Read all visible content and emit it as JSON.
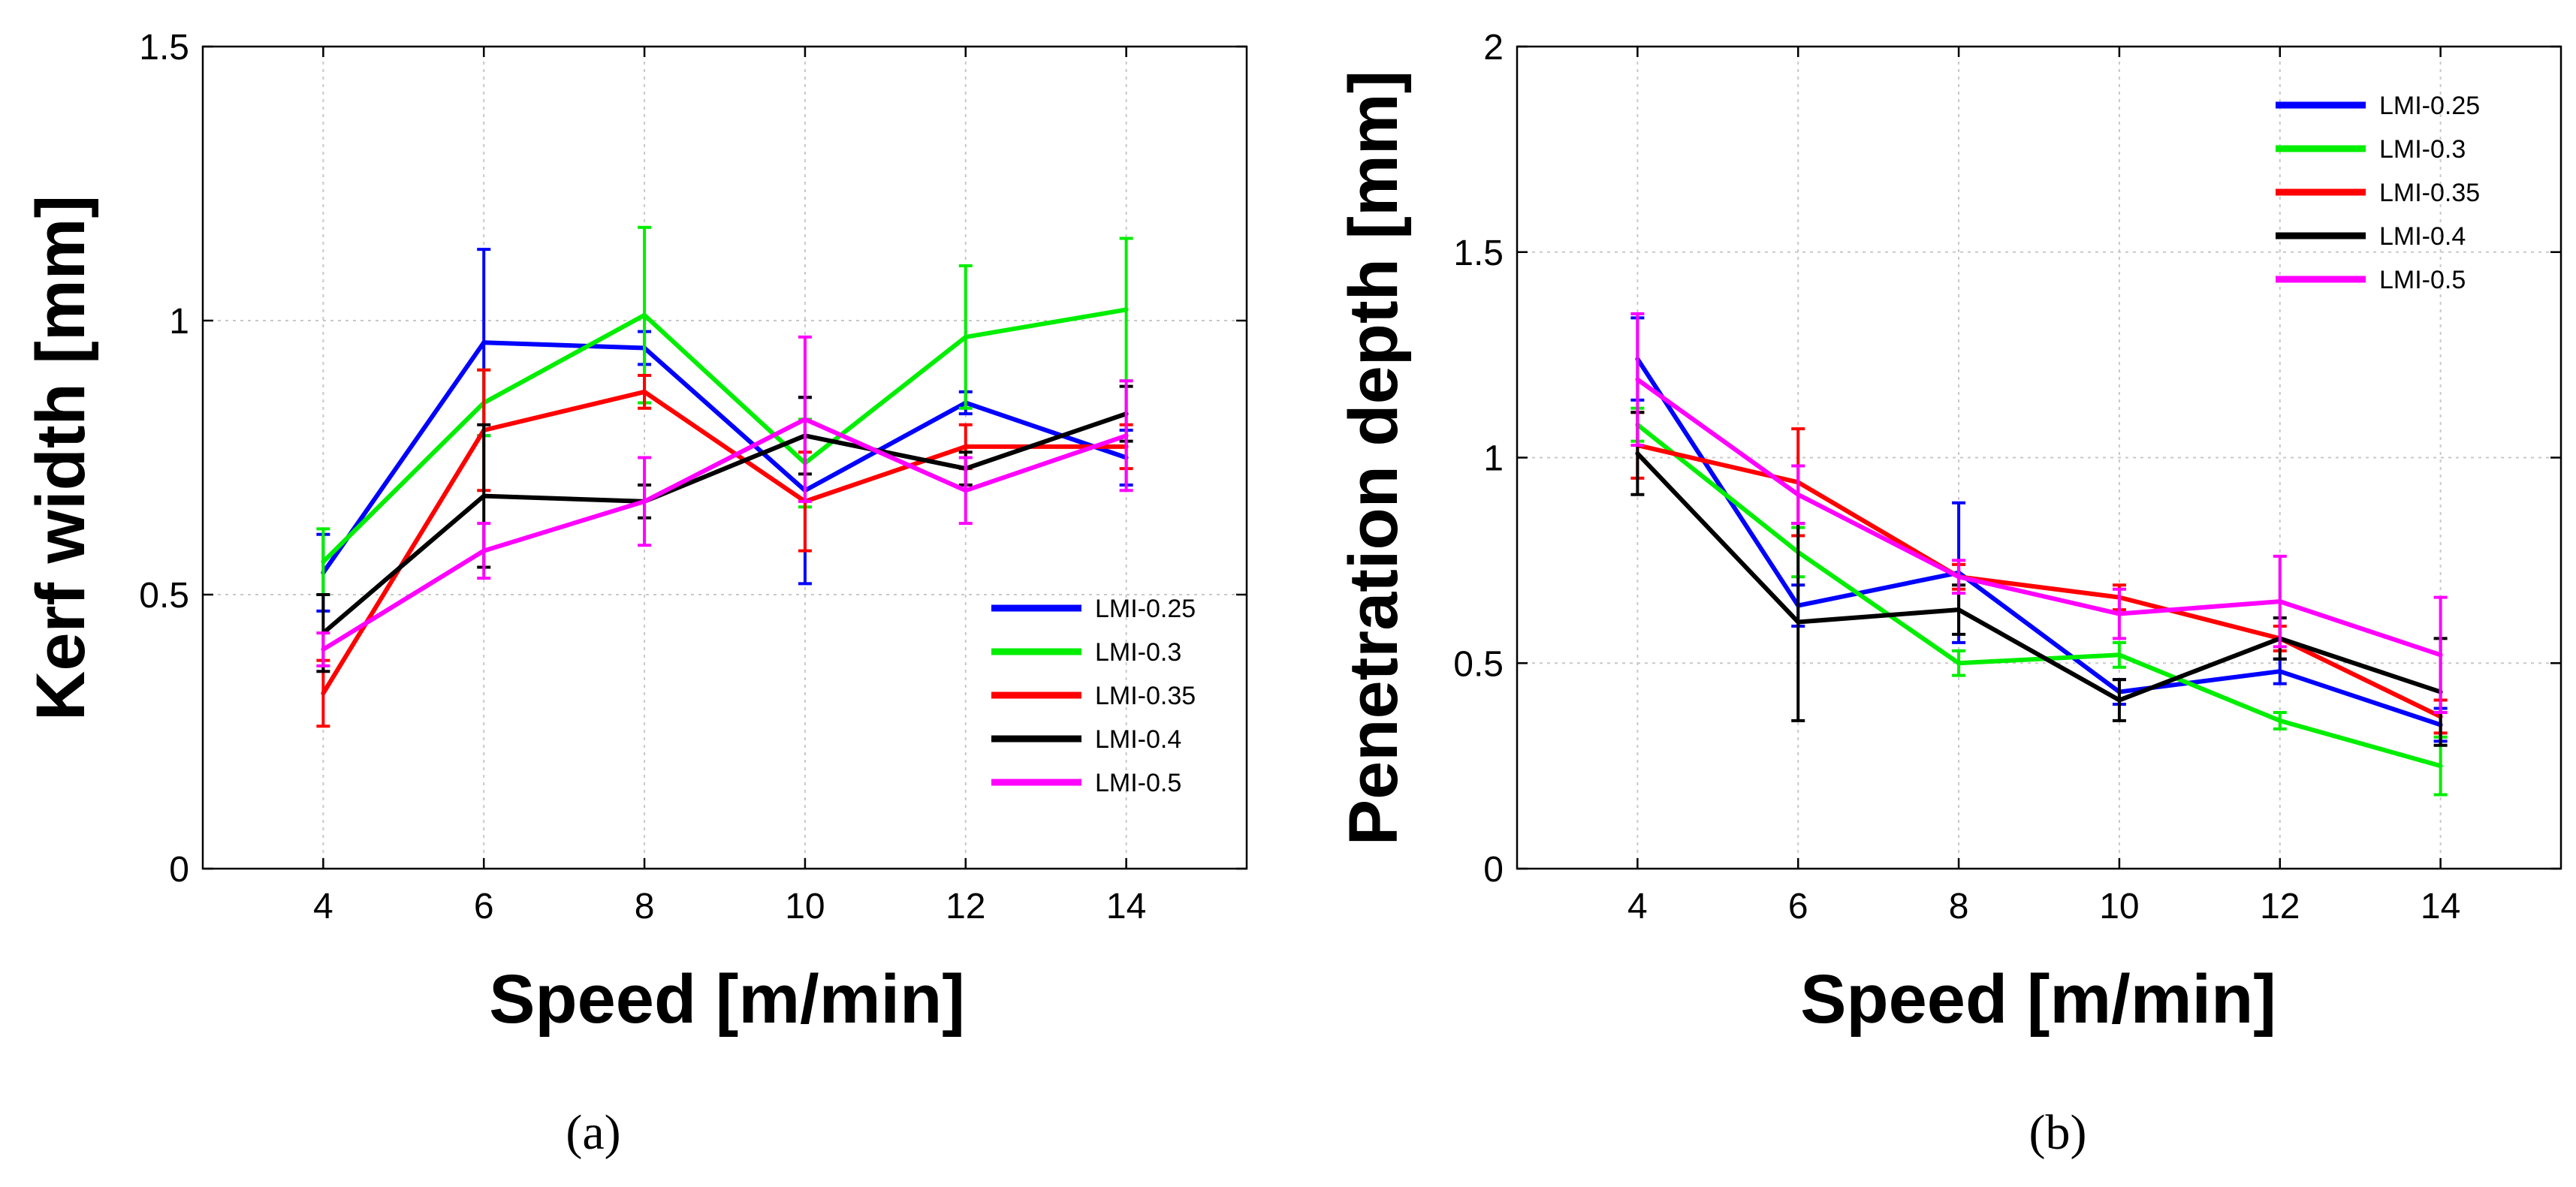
{
  "chart_data": [
    {
      "type": "line",
      "panel_label": "a",
      "title": "",
      "xlabel": "Speed [m/min]",
      "ylabel": "Kerf width [mm]",
      "x": [
        4,
        6,
        8,
        10,
        12,
        14
      ],
      "xlim": [
        2.5,
        15.5
      ],
      "ylim": [
        0,
        1.5
      ],
      "xticks": [
        "4",
        "6",
        "8",
        "10",
        "12",
        "14"
      ],
      "yticks": [
        "0",
        "0.5",
        "1",
        "1.5"
      ],
      "ytick_values": [
        0,
        0.5,
        1,
        1.5
      ],
      "grid": true,
      "legend_position": "bottom-right",
      "series": [
        {
          "name": "LMI-0.25",
          "color": "#0000ff",
          "values": [
            0.54,
            0.96,
            0.95,
            0.69,
            0.85,
            0.75
          ],
          "errors": [
            0.07,
            0.17,
            0.03,
            0.17,
            0.02,
            0.05
          ]
        },
        {
          "name": "LMI-0.3",
          "color": "#00ee00",
          "values": [
            0.56,
            0.85,
            1.01,
            0.74,
            0.97,
            1.02
          ],
          "errors": [
            0.06,
            0.06,
            0.16,
            0.08,
            0.13,
            0.13
          ]
        },
        {
          "name": "LMI-0.35",
          "color": "#ff0000",
          "values": [
            0.32,
            0.8,
            0.87,
            0.67,
            0.77,
            0.77
          ],
          "errors": [
            0.06,
            0.11,
            0.03,
            0.09,
            0.04,
            0.04
          ]
        },
        {
          "name": "LMI-0.4",
          "color": "#000000",
          "values": [
            0.43,
            0.68,
            0.67,
            0.79,
            0.73,
            0.83
          ],
          "errors": [
            0.07,
            0.13,
            0.03,
            0.07,
            0.03,
            0.05
          ]
        },
        {
          "name": "LMI-0.5",
          "color": "#ff00ff",
          "values": [
            0.4,
            0.58,
            0.67,
            0.82,
            0.69,
            0.79
          ],
          "errors": [
            0.03,
            0.05,
            0.08,
            0.15,
            0.06,
            0.1
          ]
        }
      ]
    },
    {
      "type": "line",
      "panel_label": "b",
      "title": "",
      "xlabel": "Speed [m/min]",
      "ylabel": "Penetration depth [mm]",
      "x": [
        4,
        6,
        8,
        10,
        12,
        14
      ],
      "xlim": [
        2.5,
        15.5
      ],
      "ylim": [
        0,
        2
      ],
      "xticks": [
        "4",
        "6",
        "8",
        "10",
        "12",
        "14"
      ],
      "yticks": [
        "0",
        "0.5",
        "1",
        "1.5",
        "2"
      ],
      "ytick_values": [
        0,
        0.5,
        1,
        1.5,
        2
      ],
      "grid": true,
      "legend_position": "top-right",
      "series": [
        {
          "name": "LMI-0.25",
          "color": "#0000ff",
          "values": [
            1.24,
            0.64,
            0.72,
            0.43,
            0.48,
            0.35
          ],
          "errors": [
            0.1,
            0.05,
            0.17,
            0.03,
            0.03,
            0.04
          ]
        },
        {
          "name": "LMI-0.3",
          "color": "#00ee00",
          "values": [
            1.08,
            0.77,
            0.5,
            0.52,
            0.36,
            0.25
          ],
          "errors": [
            0.04,
            0.06,
            0.03,
            0.03,
            0.02,
            0.07
          ]
        },
        {
          "name": "LMI-0.35",
          "color": "#ff0000",
          "values": [
            1.03,
            0.94,
            0.71,
            0.66,
            0.56,
            0.37
          ],
          "errors": [
            0.08,
            0.13,
            0.03,
            0.03,
            0.03,
            0.04
          ]
        },
        {
          "name": "LMI-0.4",
          "color": "#000000",
          "values": [
            1.01,
            0.6,
            0.63,
            0.41,
            0.56,
            0.43
          ],
          "errors": [
            0.1,
            0.24,
            0.06,
            0.05,
            0.05,
            0.13
          ]
        },
        {
          "name": "LMI-0.5",
          "color": "#ff00ff",
          "values": [
            1.19,
            0.91,
            0.71,
            0.62,
            0.65,
            0.52
          ],
          "errors": [
            0.16,
            0.07,
            0.04,
            0.06,
            0.11,
            0.14
          ]
        }
      ]
    }
  ],
  "captions": {
    "a": "(a)",
    "b": "(b)"
  }
}
